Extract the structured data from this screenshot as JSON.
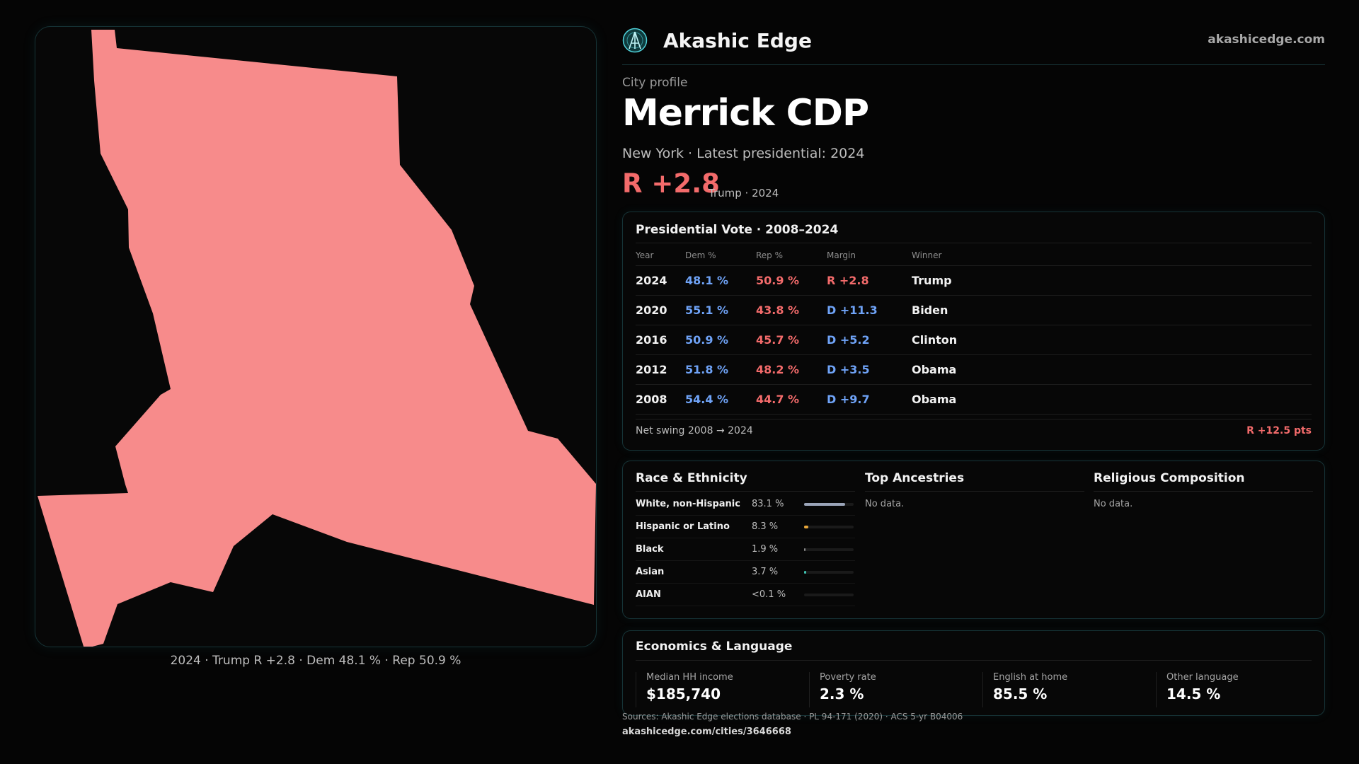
{
  "brand": {
    "name": "Akashic Edge",
    "url": "akashicedge.com",
    "logo_icon": "akashic-edge-logo-icon",
    "accent": "#4fd1d9"
  },
  "profile": {
    "eyebrow": "City profile",
    "title": "Merrick CDP",
    "subtitle": "New York  · Latest presidential: 2024",
    "margin_label": "R +2.8",
    "margin_sub": "Trump · 2024"
  },
  "map": {
    "fill_color": "#f78b8b",
    "caption": "2024 · Trump R +2.8 · Dem 48.1 % · Rep 50.9 %"
  },
  "presidential": {
    "title": "Presidential Vote · 2008–2024",
    "headers": {
      "year": "Year",
      "dem": "Dem %",
      "rep": "Rep %",
      "margin": "Margin",
      "winner": "Winner"
    },
    "rows": [
      {
        "year": "2024",
        "dem": "48.1 %",
        "rep": "50.9 %",
        "margin": "R +2.8",
        "party": "r",
        "winner": "Trump"
      },
      {
        "year": "2020",
        "dem": "55.1 %",
        "rep": "43.8 %",
        "margin": "D +11.3",
        "party": "d",
        "winner": "Biden"
      },
      {
        "year": "2016",
        "dem": "50.9 %",
        "rep": "45.7 %",
        "margin": "D +5.2",
        "party": "d",
        "winner": "Clinton"
      },
      {
        "year": "2012",
        "dem": "51.8 %",
        "rep": "48.2 %",
        "margin": "D +3.5",
        "party": "d",
        "winner": "Obama"
      },
      {
        "year": "2008",
        "dem": "54.4 %",
        "rep": "44.7 %",
        "margin": "D +9.7",
        "party": "d",
        "winner": "Obama"
      }
    ],
    "net_swing_label": "Net swing 2008 → 2024",
    "net_swing_value": "R +12.5 pts",
    "dem_color": "#6fa3f7",
    "rep_color": "#f36b6b"
  },
  "race": {
    "title": "Race & Ethnicity",
    "rows": [
      {
        "label": "White, non-Hispanic",
        "value": "83.1 %",
        "share": 0.831,
        "color": "#9aa4b8"
      },
      {
        "label": "Hispanic or Latino",
        "value": "8.3 %",
        "share": 0.083,
        "color": "#e8a73a"
      },
      {
        "label": "Black",
        "value": "1.9 %",
        "share": 0.019,
        "color": "#8a8a8a"
      },
      {
        "label": "Asian",
        "value": "3.7 %",
        "share": 0.037,
        "color": "#3fc4b3"
      },
      {
        "label": "AIAN",
        "value": "<0.1 %",
        "share": 0.0,
        "color": "#8a8a8a"
      }
    ]
  },
  "ancestries": {
    "title": "Top Ancestries",
    "empty": "No data."
  },
  "religion": {
    "title": "Religious Composition",
    "empty": "No data."
  },
  "economics": {
    "title": "Economics & Language",
    "items": [
      {
        "label": "Median HH income",
        "value": "$185,740"
      },
      {
        "label": "Poverty rate",
        "value": "2.3 %"
      },
      {
        "label": "English at home",
        "value": "85.5 %"
      },
      {
        "label": "Other language",
        "value": "14.5 %"
      }
    ]
  },
  "footer": {
    "sources": "Sources: Akashic Edge elections database · PL 94-171 (2020) · ACS 5-yr B04006",
    "url": "akashicedge.com/cities/3646668"
  }
}
